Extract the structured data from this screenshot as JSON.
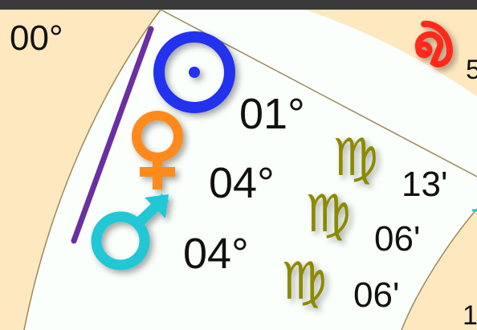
{
  "chart": {
    "outer_degree_label": "00°",
    "partial_sign_label": "5",
    "partial_right_label": "1",
    "planets": [
      {
        "name": "sun",
        "glyph": "sun-icon",
        "color": "#2233ee",
        "degree": "01°"
      },
      {
        "name": "venus",
        "glyph": "venus-icon",
        "color": "#ff8a1a",
        "degree": "04°"
      },
      {
        "name": "mars",
        "glyph": "mars-icon",
        "color": "#22c7d6",
        "degree": "04°"
      }
    ],
    "minutes": [
      {
        "planet": "sun",
        "sign_glyph": "virgo-icon",
        "minute": "13'"
      },
      {
        "planet": "venus",
        "sign_glyph": "virgo-icon",
        "minute": "06'"
      },
      {
        "planet": "mars",
        "sign_glyph": "virgo-icon",
        "minute": "06'"
      }
    ],
    "sign_glyph_outer": "leo-icon",
    "colors": {
      "band": "#fde8bf",
      "wheel": "#fbfffb",
      "border": "#9a8a5a",
      "conjunction_line": "#6a2fa3",
      "virgo": "#8c8a00",
      "leo": "#ff2a1a"
    }
  }
}
